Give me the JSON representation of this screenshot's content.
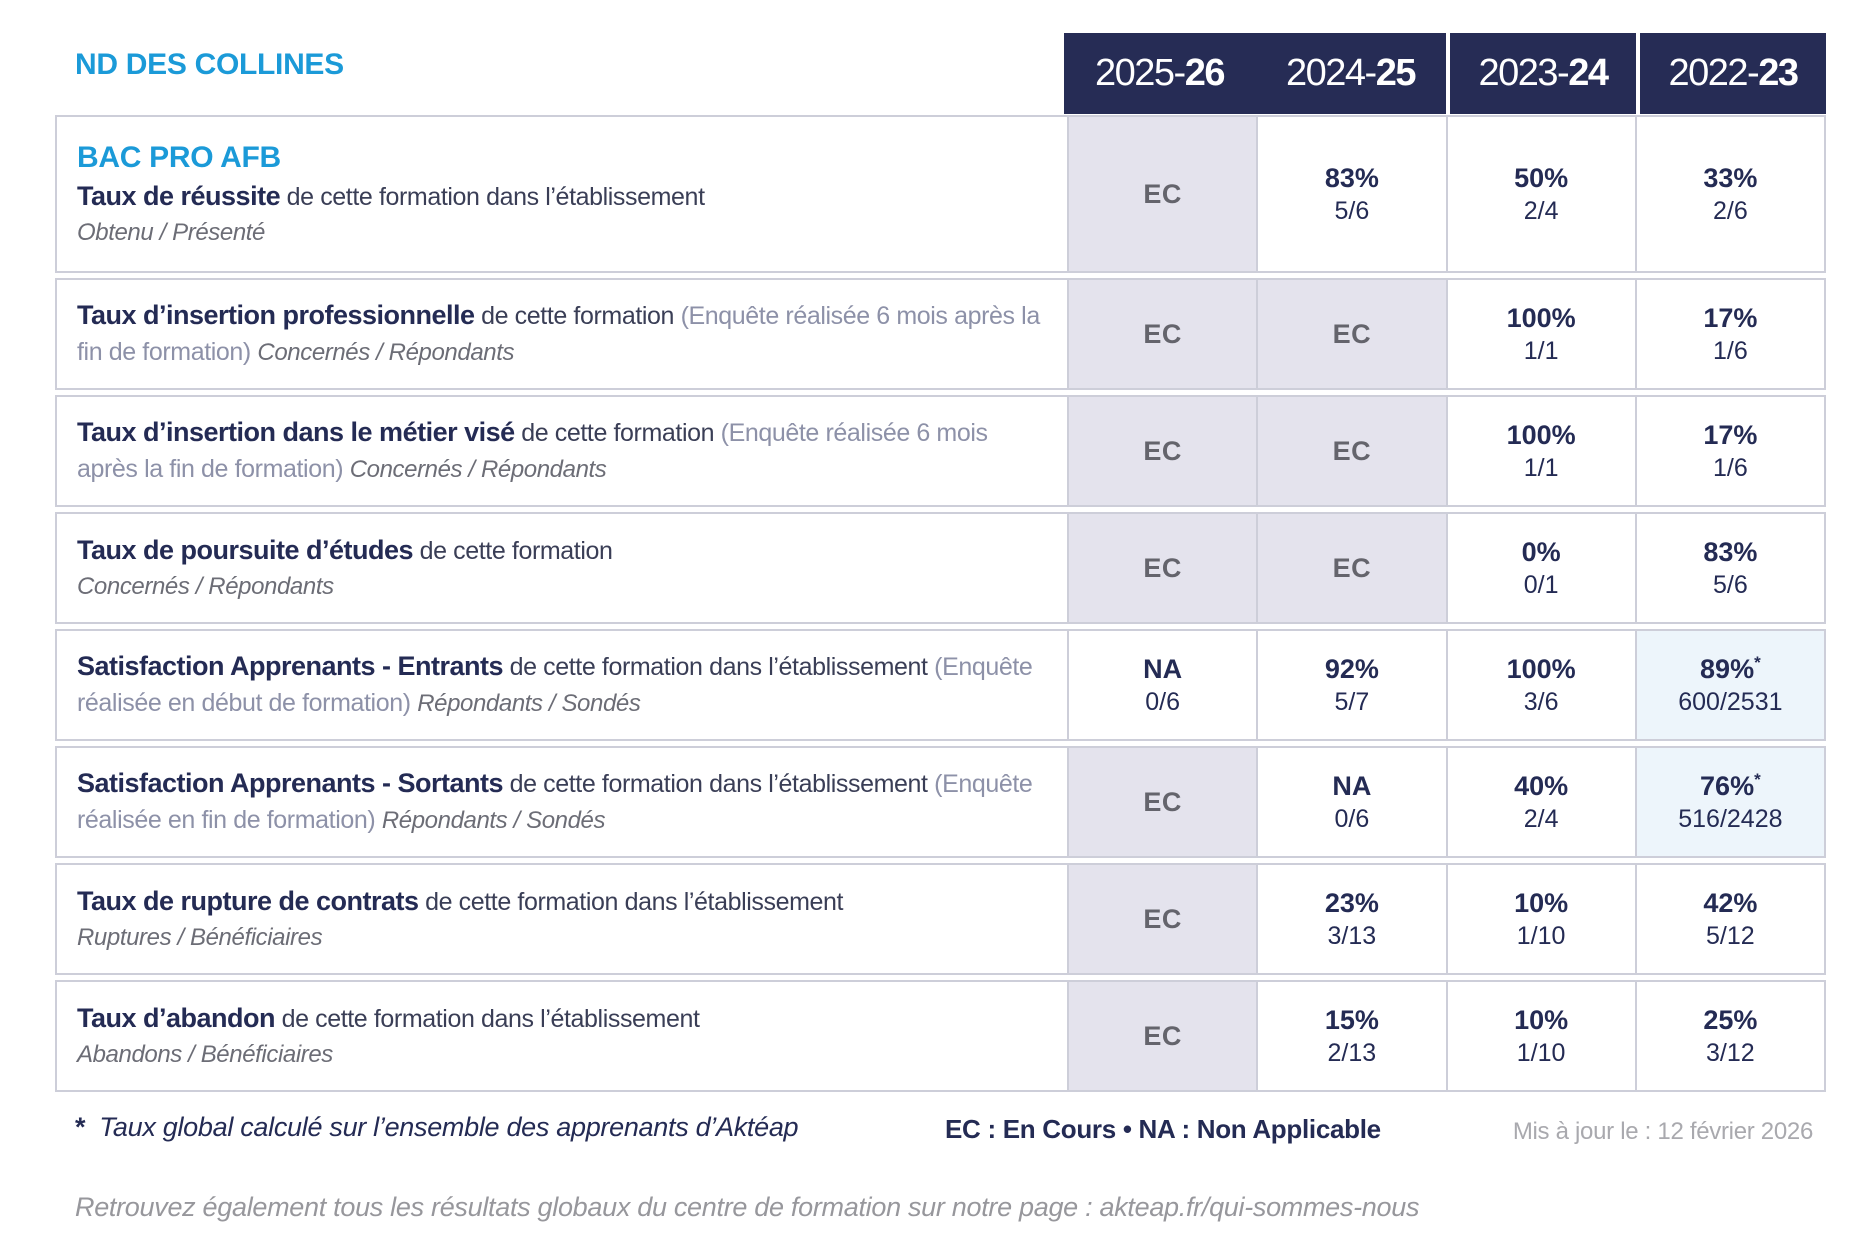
{
  "school_name": "ND DES COLLINES",
  "year_headers": [
    {
      "prefix": "2025-",
      "suffix": "26"
    },
    {
      "prefix": "2024-",
      "suffix": "25"
    },
    {
      "prefix": "2023-",
      "suffix": "24"
    },
    {
      "prefix": "2022-",
      "suffix": "23"
    }
  ],
  "rows": [
    {
      "program": "BAC PRO AFB",
      "title": "Taux de réussite",
      "desc": "de cette formation dans l’établissement",
      "note": "",
      "subtitle": "Obtenu / Présenté",
      "subtitle_inline": false,
      "values": [
        {
          "main": "EC",
          "style": "ec"
        },
        {
          "main": "83%",
          "fraction": "5/6",
          "style": "plain"
        },
        {
          "main": "50%",
          "fraction": "2/4",
          "style": "plain"
        },
        {
          "main": "33%",
          "fraction": "2/6",
          "style": "plain"
        }
      ]
    },
    {
      "title": "Taux d’insertion professionnelle",
      "desc": "de cette formation",
      "note": "(Enquête réalisée 6 mois après la fin de formation)",
      "subtitle": "Concernés / Répondants",
      "subtitle_inline": true,
      "values": [
        {
          "main": "EC",
          "style": "ec"
        },
        {
          "main": "EC",
          "style": "ec"
        },
        {
          "main": "100%",
          "fraction": "1/1",
          "style": "plain"
        },
        {
          "main": "17%",
          "fraction": "1/6",
          "style": "plain"
        }
      ]
    },
    {
      "title": "Taux d’insertion dans le métier visé",
      "desc": "de cette formation",
      "note": "(Enquête réalisée 6 mois après la fin de formation)",
      "subtitle": "Concernés / Répondants",
      "subtitle_inline": true,
      "values": [
        {
          "main": "EC",
          "style": "ec"
        },
        {
          "main": "EC",
          "style": "ec"
        },
        {
          "main": "100%",
          "fraction": "1/1",
          "style": "plain"
        },
        {
          "main": "17%",
          "fraction": "1/6",
          "style": "plain"
        }
      ]
    },
    {
      "title": "Taux de poursuite d’études",
      "desc": "de cette formation",
      "note": "",
      "subtitle": "Concernés / Répondants",
      "subtitle_inline": false,
      "values": [
        {
          "main": "EC",
          "style": "ec"
        },
        {
          "main": "EC",
          "style": "ec"
        },
        {
          "main": "0%",
          "fraction": "0/1",
          "style": "plain"
        },
        {
          "main": "83%",
          "fraction": "5/6",
          "style": "plain"
        }
      ]
    },
    {
      "title": "Satisfaction Apprenants - Entrants",
      "desc": "de cette formation dans l’établissement",
      "note": "(Enquête réalisée en début de formation)",
      "subtitle": "Répondants / Sondés",
      "subtitle_inline": true,
      "values": [
        {
          "main": "NA",
          "fraction": "0/6",
          "style": "plain"
        },
        {
          "main": "92%",
          "fraction": "5/7",
          "style": "plain"
        },
        {
          "main": "100%",
          "fraction": "3/6",
          "style": "plain"
        },
        {
          "main": "89%",
          "star": "*",
          "fraction": "600/2531",
          "style": "starred"
        }
      ]
    },
    {
      "title": "Satisfaction Apprenants - Sortants",
      "desc": "de cette formation dans l’établissement",
      "note": "(Enquête réalisée en fin de formation)",
      "subtitle": "Répondants / Sondés",
      "subtitle_inline": true,
      "values": [
        {
          "main": "EC",
          "style": "ec"
        },
        {
          "main": "NA",
          "fraction": "0/6",
          "style": "plain"
        },
        {
          "main": "40%",
          "fraction": "2/4",
          "style": "plain"
        },
        {
          "main": "76%",
          "star": "*",
          "fraction": "516/2428",
          "style": "starred"
        }
      ]
    },
    {
      "title": "Taux de rupture de contrats",
      "desc": "de cette formation dans l’établissement",
      "note": "",
      "subtitle": "Ruptures / Bénéficiaires",
      "subtitle_inline": false,
      "values": [
        {
          "main": "EC",
          "style": "ec"
        },
        {
          "main": "23%",
          "fraction": "3/13",
          "style": "plain"
        },
        {
          "main": "10%",
          "fraction": "1/10",
          "style": "plain"
        },
        {
          "main": "42%",
          "fraction": "5/12",
          "style": "plain"
        }
      ]
    },
    {
      "title": "Taux d’abandon",
      "desc": "de cette formation dans l’établissement",
      "note": "",
      "subtitle": "Abandons / Bénéficiaires",
      "subtitle_inline": false,
      "values": [
        {
          "main": "EC",
          "style": "ec"
        },
        {
          "main": "15%",
          "fraction": "2/13",
          "style": "plain"
        },
        {
          "main": "10%",
          "fraction": "1/10",
          "style": "plain"
        },
        {
          "main": "25%",
          "fraction": "3/12",
          "style": "plain"
        }
      ]
    }
  ],
  "footer": {
    "star": "*",
    "footnote": "Taux global calculé sur l’ensemble des apprenants d’Aktéap",
    "legend": "EC : En Cours  •  NA : Non Applicable",
    "updated": "Mis à jour le : 12 février 2026",
    "bottom_line": "Retrouvez également tous les résultats globaux du centre de formation sur notre page : akteap.fr/qui-sommes-nous"
  },
  "colors": {
    "accent_blue": "#1b9ad8",
    "header_navy": "#262c55",
    "text_navy": "#242b54",
    "ec_cell_bg": "#e4e3ed",
    "starred_cell_bg": "#edf5fb",
    "border_gray": "#cdced9"
  }
}
